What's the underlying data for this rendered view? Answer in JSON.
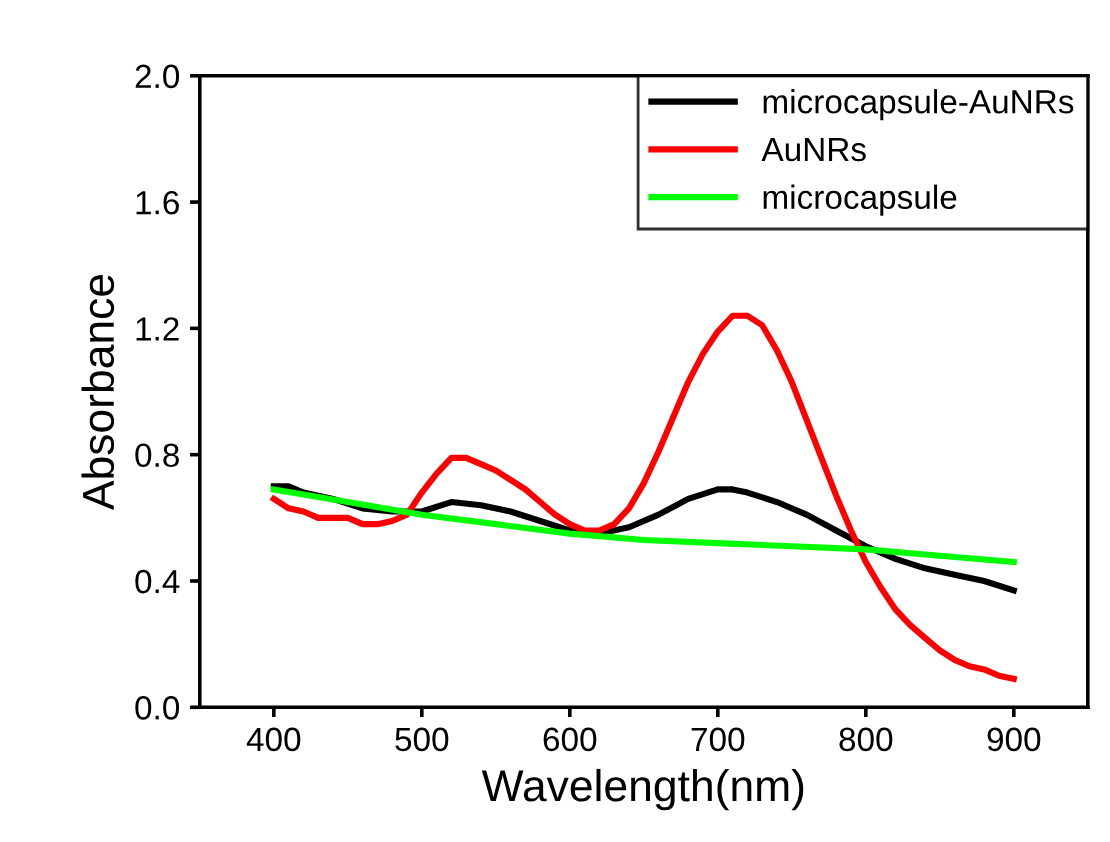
{
  "chart_data": {
    "type": "line",
    "xlabel": "Wavelength(nm)",
    "ylabel": "Absorbance",
    "xlim": [
      350,
      950
    ],
    "xticks": [
      400,
      500,
      600,
      700,
      800,
      900
    ],
    "ylim": [
      0,
      2.0
    ],
    "yticks": [
      {
        "value": 0,
        "label": "0.0"
      },
      0.4,
      0.8,
      1.2,
      1.6,
      {
        "value": 2,
        "label": "2.0"
      }
    ],
    "grid": false,
    "legend": "top right",
    "marker": "none",
    "line_style": "solid",
    "series": [
      {
        "name": "microcapsule-AuNRs",
        "color": "#000000",
        "x": [
          400,
          410,
          420,
          440,
          460,
          480,
          500,
          520,
          540,
          560,
          580,
          600,
          620,
          640,
          660,
          680,
          700,
          710,
          720,
          740,
          760,
          780,
          800,
          820,
          840,
          860,
          880,
          900
        ],
        "values": [
          0.7,
          0.7,
          0.68,
          0.66,
          0.63,
          0.62,
          0.62,
          0.65,
          0.64,
          0.62,
          0.59,
          0.56,
          0.55,
          0.57,
          0.61,
          0.66,
          0.69,
          0.69,
          0.68,
          0.65,
          0.61,
          0.56,
          0.51,
          0.47,
          0.44,
          0.42,
          0.4,
          0.37
        ]
      },
      {
        "name": "AuNRs",
        "color": "#ff0000",
        "x": [
          400,
          410,
          420,
          430,
          450,
          460,
          470,
          480,
          490,
          500,
          510,
          520,
          530,
          540,
          550,
          560,
          570,
          580,
          590,
          600,
          610,
          620,
          630,
          640,
          650,
          660,
          670,
          680,
          690,
          700,
          710,
          720,
          730,
          740,
          750,
          760,
          770,
          780,
          790,
          800,
          810,
          820,
          830,
          840,
          850,
          860,
          870,
          880,
          890,
          900
        ],
        "values": [
          0.66,
          0.63,
          0.62,
          0.6,
          0.6,
          0.58,
          0.58,
          0.59,
          0.61,
          0.68,
          0.74,
          0.79,
          0.79,
          0.77,
          0.75,
          0.72,
          0.69,
          0.65,
          0.61,
          0.58,
          0.56,
          0.56,
          0.58,
          0.63,
          0.71,
          0.81,
          0.92,
          1.03,
          1.12,
          1.19,
          1.24,
          1.24,
          1.21,
          1.13,
          1.03,
          0.91,
          0.79,
          0.67,
          0.56,
          0.46,
          0.38,
          0.31,
          0.26,
          0.22,
          0.18,
          0.15,
          0.13,
          0.12,
          0.1,
          0.09
        ]
      },
      {
        "name": "microcapsule",
        "color": "#00ff00",
        "x": [
          400,
          450,
          500,
          550,
          600,
          650,
          700,
          750,
          800,
          850,
          900
        ],
        "values": [
          0.69,
          0.65,
          0.61,
          0.58,
          0.55,
          0.53,
          0.52,
          0.51,
          0.5,
          0.48,
          0.46
        ]
      }
    ]
  }
}
